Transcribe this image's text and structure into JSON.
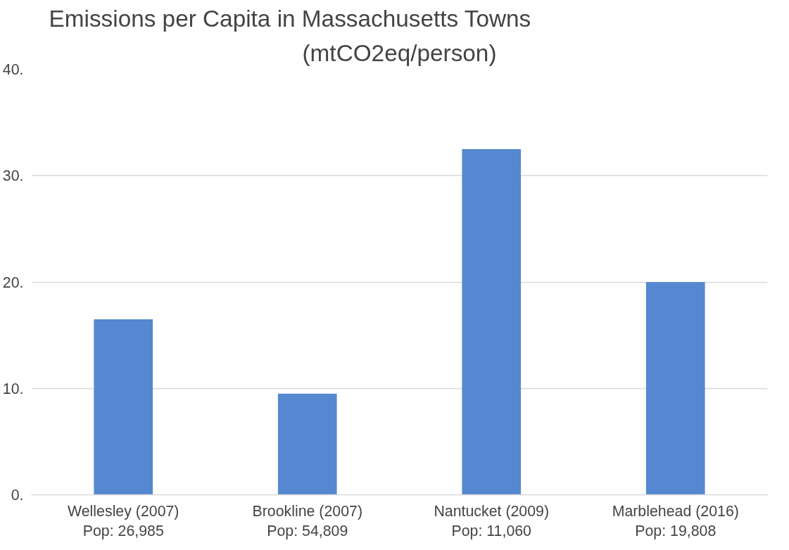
{
  "chart_data": {
    "type": "bar",
    "title": "Emissions per Capita in Massachusetts Towns",
    "subtitle": "(mtCO2eq/person)",
    "categories": [
      "Wellesley (2007)\nPop: 26,985",
      "Brookline (2007)\nPop: 54,809",
      "Nantucket (2009)\nPop: 11,060",
      "Marblehead (2016)\nPop: 19,808"
    ],
    "values": [
      16.5,
      9.5,
      32.5,
      20
    ],
    "color": "#5588d0",
    "ylim": [
      0,
      40
    ],
    "yticks": [
      {
        "value": 0,
        "label": "0."
      },
      {
        "value": 10,
        "label": "10."
      },
      {
        "value": 20,
        "label": "20."
      },
      {
        "value": 30,
        "label": "30."
      },
      {
        "value": 40,
        "label": "40."
      }
    ],
    "grid": "y"
  }
}
